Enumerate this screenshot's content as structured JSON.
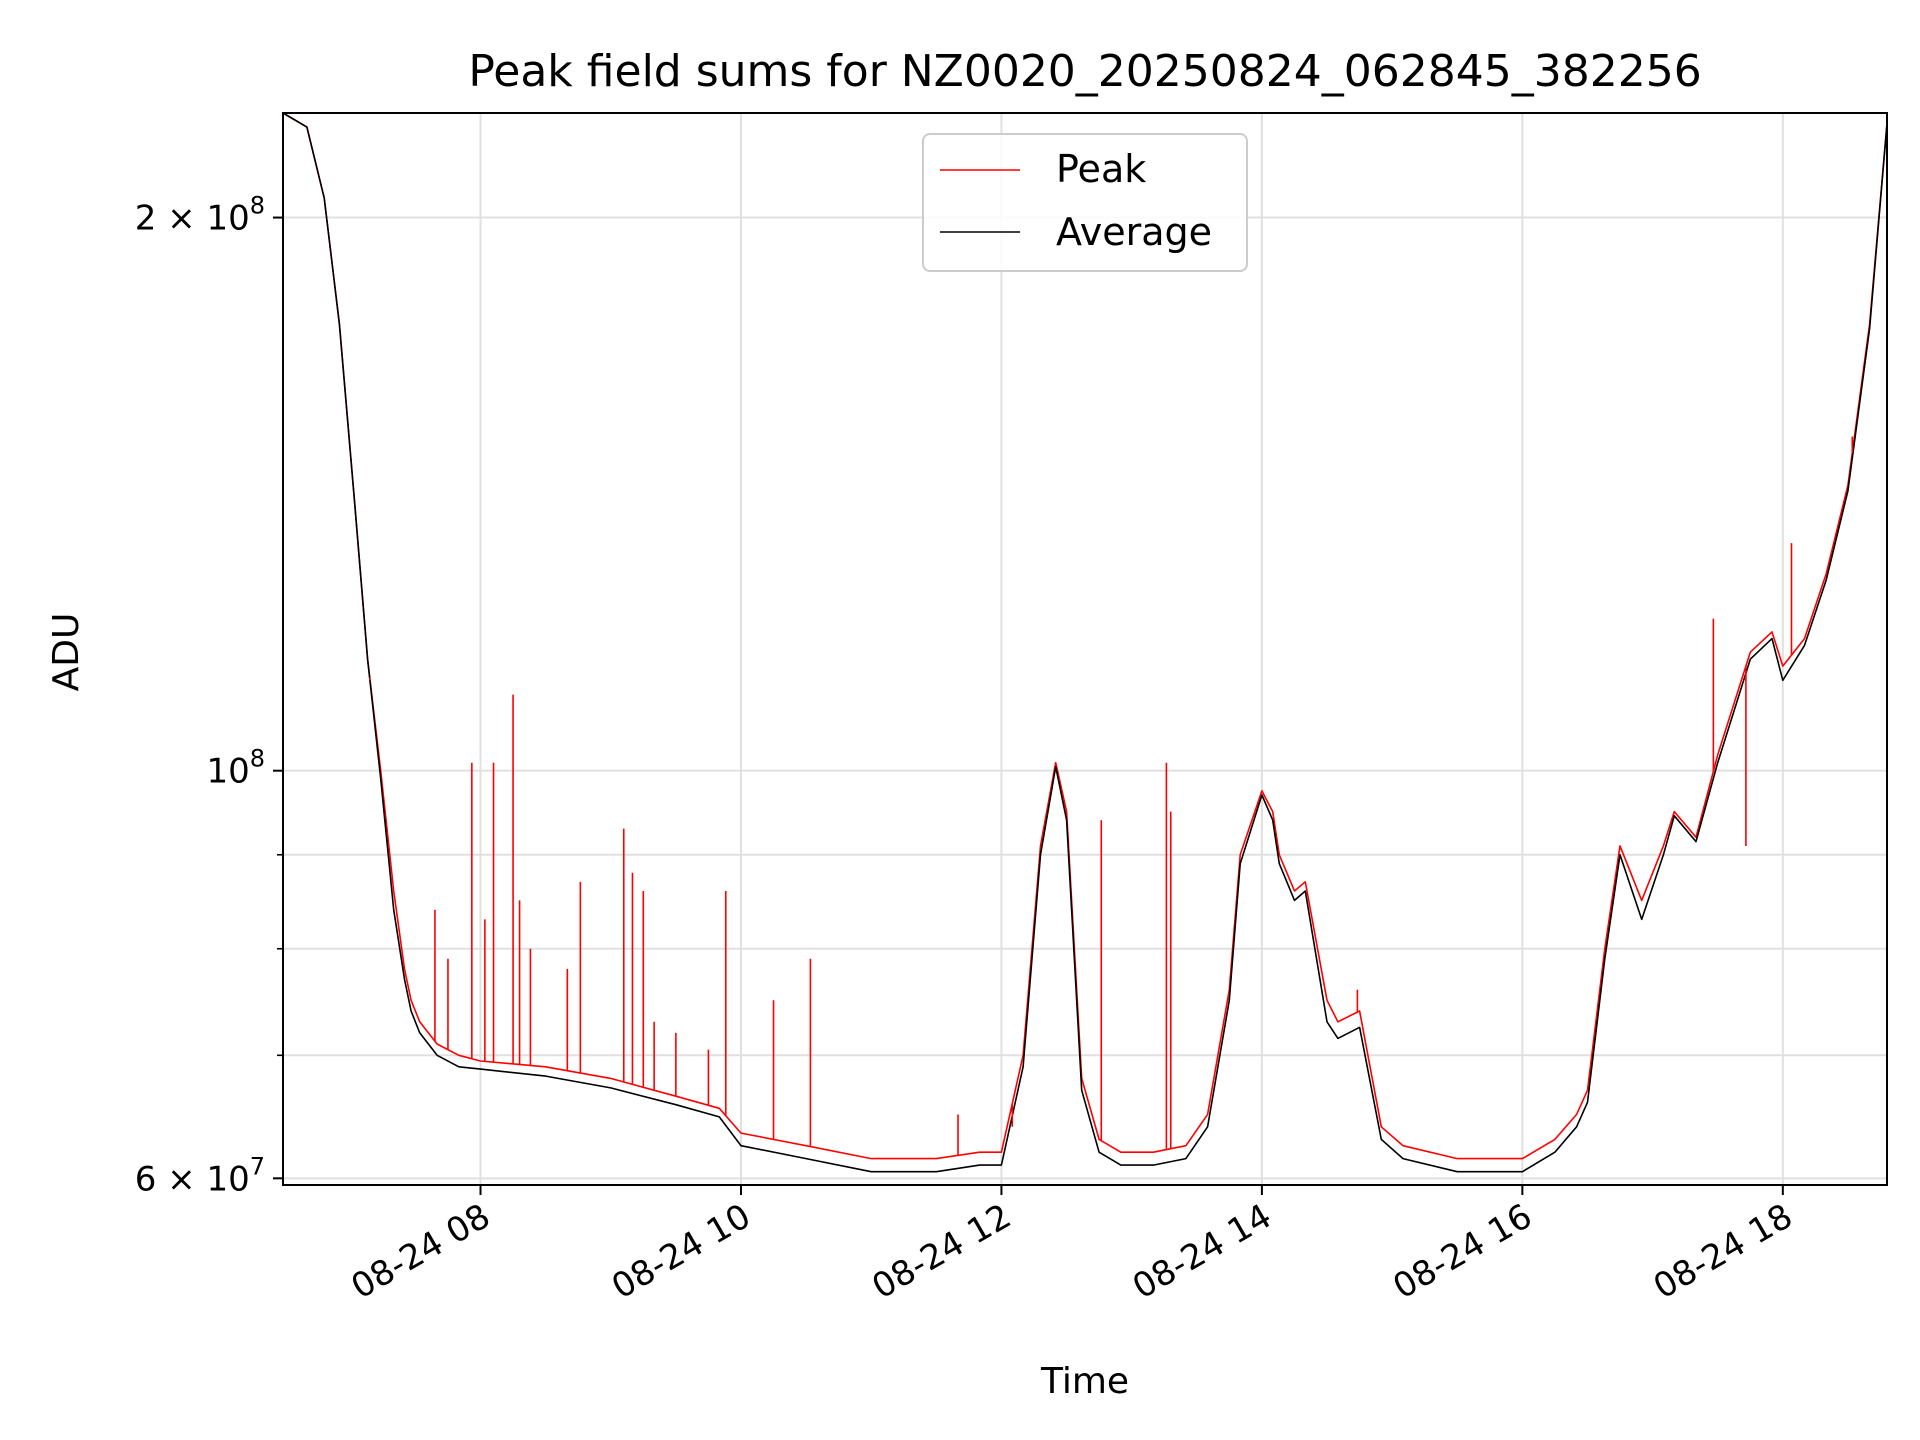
{
  "chart_data": {
    "type": "line",
    "title": "Peak field sums for NZ0020_20250824_062845_382256",
    "xlabel": "Time",
    "ylabel": "ADU",
    "xlim": [
      "2025-08-24T06:29",
      "2025-08-24T18:48"
    ],
    "ylim": [
      59500000,
      228000000
    ],
    "yscale": "log",
    "grid": true,
    "legend_placement": "upper center",
    "x_tick_labels": [
      "08-24 08",
      "08-24 10",
      "08-24 12",
      "08-24 14",
      "08-24 16",
      "08-24 18"
    ],
    "x_ticks": [
      "2025-08-24T08:00",
      "2025-08-24T10:00",
      "2025-08-24T12:00",
      "2025-08-24T14:00",
      "2025-08-24T16:00",
      "2025-08-24T18:00"
    ],
    "y_major_ticks": [
      {
        "value": 60000000,
        "mantissa": "6",
        "exponent": "7"
      },
      {
        "value": 100000000,
        "mantissa": "",
        "exponent": "8"
      },
      {
        "value": 200000000,
        "mantissa": "2",
        "exponent": "8"
      }
    ],
    "y_minor_ticks": [
      70000000,
      80000000,
      90000000
    ],
    "series": [
      {
        "name": "Peak",
        "color": "#ff0000",
        "x": [
          "2025-08-24T06:29",
          "2025-08-24T06:40",
          "2025-08-24T06:48",
          "2025-08-24T06:55",
          "2025-08-24T07:02",
          "2025-08-24T07:08",
          "2025-08-24T07:14",
          "2025-08-24T07:20",
          "2025-08-24T07:25",
          "2025-08-24T07:28",
          "2025-08-24T07:32",
          "2025-08-24T07:40",
          "2025-08-24T07:50",
          "2025-08-24T08:00",
          "2025-08-24T08:30",
          "2025-08-24T09:00",
          "2025-08-24T09:30",
          "2025-08-24T09:50",
          "2025-08-24T10:00",
          "2025-08-24T10:30",
          "2025-08-24T11:00",
          "2025-08-24T11:30",
          "2025-08-24T11:50",
          "2025-08-24T12:00",
          "2025-08-24T12:10",
          "2025-08-24T12:18",
          "2025-08-24T12:25",
          "2025-08-24T12:30",
          "2025-08-24T12:37",
          "2025-08-24T12:45",
          "2025-08-24T12:55",
          "2025-08-24T13:10",
          "2025-08-24T13:25",
          "2025-08-24T13:35",
          "2025-08-24T13:45",
          "2025-08-24T13:50",
          "2025-08-24T14:00",
          "2025-08-24T14:05",
          "2025-08-24T14:08",
          "2025-08-24T14:15",
          "2025-08-24T14:20",
          "2025-08-24T14:30",
          "2025-08-24T14:35",
          "2025-08-24T14:45",
          "2025-08-24T14:55",
          "2025-08-24T15:05",
          "2025-08-24T15:30",
          "2025-08-24T16:00",
          "2025-08-24T16:15",
          "2025-08-24T16:25",
          "2025-08-24T16:30",
          "2025-08-24T16:38",
          "2025-08-24T16:45",
          "2025-08-24T16:55",
          "2025-08-24T17:05",
          "2025-08-24T17:10",
          "2025-08-24T17:20",
          "2025-08-24T17:30",
          "2025-08-24T17:45",
          "2025-08-24T17:55",
          "2025-08-24T18:00",
          "2025-08-24T18:10",
          "2025-08-24T18:20",
          "2025-08-24T18:30",
          "2025-08-24T18:40",
          "2025-08-24T18:48"
        ],
        "values": [
          228000000,
          224000000,
          205000000,
          175000000,
          140000000,
          115000000,
          100000000,
          86000000,
          78000000,
          75000000,
          73000000,
          71000000,
          70000000,
          69500000,
          69000000,
          68000000,
          66500000,
          65500000,
          63500000,
          62500000,
          61500000,
          61500000,
          62000000,
          62000000,
          70000000,
          91000000,
          101000000,
          95000000,
          68000000,
          63000000,
          62000000,
          62000000,
          62500000,
          65000000,
          76000000,
          90000000,
          97500000,
          95000000,
          90000000,
          86000000,
          87000000,
          75000000,
          73000000,
          74000000,
          64000000,
          62500000,
          61500000,
          61500000,
          63000000,
          65000000,
          67000000,
          80000000,
          91000000,
          85000000,
          91000000,
          95000000,
          92000000,
          102000000,
          116000000,
          119000000,
          114000000,
          118000000,
          128000000,
          143000000,
          175000000,
          225000000
        ]
      },
      {
        "name": "Average",
        "color": "#000000",
        "x": [
          "2025-08-24T06:29",
          "2025-08-24T06:40",
          "2025-08-24T06:48",
          "2025-08-24T06:55",
          "2025-08-24T07:02",
          "2025-08-24T07:08",
          "2025-08-24T07:14",
          "2025-08-24T07:20",
          "2025-08-24T07:25",
          "2025-08-24T07:28",
          "2025-08-24T07:32",
          "2025-08-24T07:40",
          "2025-08-24T07:50",
          "2025-08-24T08:00",
          "2025-08-24T08:30",
          "2025-08-24T09:00",
          "2025-08-24T09:30",
          "2025-08-24T09:50",
          "2025-08-24T10:00",
          "2025-08-24T10:30",
          "2025-08-24T11:00",
          "2025-08-24T11:30",
          "2025-08-24T11:50",
          "2025-08-24T12:00",
          "2025-08-24T12:10",
          "2025-08-24T12:18",
          "2025-08-24T12:25",
          "2025-08-24T12:30",
          "2025-08-24T12:37",
          "2025-08-24T12:45",
          "2025-08-24T12:55",
          "2025-08-24T13:10",
          "2025-08-24T13:25",
          "2025-08-24T13:35",
          "2025-08-24T13:45",
          "2025-08-24T13:50",
          "2025-08-24T14:00",
          "2025-08-24T14:05",
          "2025-08-24T14:08",
          "2025-08-24T14:15",
          "2025-08-24T14:20",
          "2025-08-24T14:30",
          "2025-08-24T14:35",
          "2025-08-24T14:45",
          "2025-08-24T14:55",
          "2025-08-24T15:05",
          "2025-08-24T15:30",
          "2025-08-24T16:00",
          "2025-08-24T16:15",
          "2025-08-24T16:25",
          "2025-08-24T16:30",
          "2025-08-24T16:38",
          "2025-08-24T16:45",
          "2025-08-24T16:55",
          "2025-08-24T17:05",
          "2025-08-24T17:10",
          "2025-08-24T17:20",
          "2025-08-24T17:30",
          "2025-08-24T17:45",
          "2025-08-24T17:55",
          "2025-08-24T18:00",
          "2025-08-24T18:10",
          "2025-08-24T18:20",
          "2025-08-24T18:30",
          "2025-08-24T18:40",
          "2025-08-24T18:48"
        ],
        "values": [
          228000000,
          224000000,
          205000000,
          175000000,
          140000000,
          115000000,
          99000000,
          84000000,
          77000000,
          74000000,
          72000000,
          70000000,
          69000000,
          68800000,
          68200000,
          67200000,
          65800000,
          64800000,
          62500000,
          61500000,
          60500000,
          60500000,
          61000000,
          61000000,
          69000000,
          90000000,
          100500000,
          94000000,
          67000000,
          62000000,
          61000000,
          61000000,
          61500000,
          64000000,
          75000000,
          89000000,
          97000000,
          94000000,
          89000000,
          85000000,
          86000000,
          73000000,
          71500000,
          72500000,
          63000000,
          61500000,
          60500000,
          60500000,
          62000000,
          64000000,
          66000000,
          79000000,
          90000000,
          83000000,
          90000000,
          94500000,
          91500000,
          101000000,
          115000000,
          118000000,
          112000000,
          117000000,
          127000000,
          142000000,
          174000000,
          225000000
        ]
      }
    ],
    "spikes": [
      {
        "series": "Peak",
        "x": "2025-08-24T07:09",
        "value": 112000000
      },
      {
        "series": "Peak",
        "x": "2025-08-24T07:39",
        "value": 84000000
      },
      {
        "series": "Peak",
        "x": "2025-08-24T07:45",
        "value": 79000000
      },
      {
        "series": "Peak",
        "x": "2025-08-24T07:56",
        "value": 101000000
      },
      {
        "series": "Peak",
        "x": "2025-08-24T08:06",
        "value": 101000000
      },
      {
        "series": "Peak",
        "x": "2025-08-24T08:15",
        "value": 110000000
      },
      {
        "series": "Peak",
        "x": "2025-08-24T08:18",
        "value": 85000000
      },
      {
        "series": "Peak",
        "x": "2025-08-24T08:02",
        "value": 83000000
      },
      {
        "series": "Peak",
        "x": "2025-08-24T08:23",
        "value": 80000000
      },
      {
        "series": "Peak",
        "x": "2025-08-24T08:40",
        "value": 78000000
      },
      {
        "series": "Peak",
        "x": "2025-08-24T08:46",
        "value": 87000000
      },
      {
        "series": "Peak",
        "x": "2025-08-24T09:06",
        "value": 93000000
      },
      {
        "series": "Peak",
        "x": "2025-08-24T09:10",
        "value": 88000000
      },
      {
        "series": "Peak",
        "x": "2025-08-24T09:15",
        "value": 86000000
      },
      {
        "series": "Peak",
        "x": "2025-08-24T09:20",
        "value": 73000000
      },
      {
        "series": "Peak",
        "x": "2025-08-24T09:30",
        "value": 72000000
      },
      {
        "series": "Peak",
        "x": "2025-08-24T09:45",
        "value": 70500000
      },
      {
        "series": "Peak",
        "x": "2025-08-24T09:53",
        "value": 86000000
      },
      {
        "series": "Peak",
        "x": "2025-08-24T10:15",
        "value": 75000000
      },
      {
        "series": "Peak",
        "x": "2025-08-24T10:32",
        "value": 79000000
      },
      {
        "series": "Peak",
        "x": "2025-08-24T11:40",
        "value": 65000000
      },
      {
        "series": "Peak",
        "x": "2025-08-24T12:05",
        "value": 64000000
      },
      {
        "series": "Peak",
        "x": "2025-08-24T12:46",
        "value": 94000000
      },
      {
        "series": "Peak",
        "x": "2025-08-24T13:16",
        "value": 101000000
      },
      {
        "series": "Peak",
        "x": "2025-08-24T13:18",
        "value": 95000000
      },
      {
        "series": "Peak",
        "x": "2025-08-24T14:44",
        "value": 76000000
      },
      {
        "series": "Peak",
        "x": "2025-08-24T17:28",
        "value": 121000000
      },
      {
        "series": "Peak",
        "x": "2025-08-24T17:43",
        "value": 91000000
      },
      {
        "series": "Peak",
        "x": "2025-08-24T18:04",
        "value": 133000000
      },
      {
        "series": "Peak",
        "x": "2025-08-24T18:32",
        "value": 152000000
      }
    ]
  }
}
